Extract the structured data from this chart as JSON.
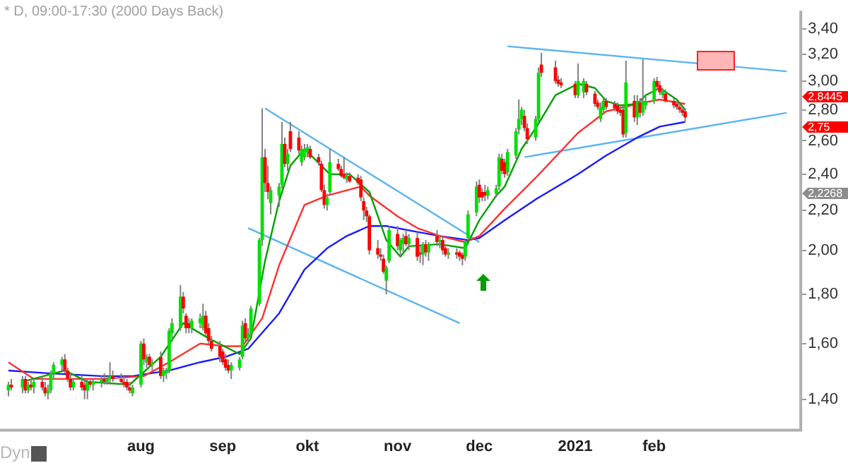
{
  "chart_data": {
    "type": "candlestick",
    "title": "* D, 09:00-17:30 (2000 Days Back)",
    "log": "y",
    "x": [
      "2020-06-17",
      "2020-06-18",
      "2020-06-22",
      "2020-06-23",
      "2020-06-24",
      "2020-06-25",
      "2020-06-26",
      "2020-06-29",
      "2020-06-30",
      "2020-07-01",
      "2020-07-02",
      "2020-07-03",
      "2020-07-06",
      "2020-07-07",
      "2020-07-08",
      "2020-07-09",
      "2020-07-10",
      "2020-07-13",
      "2020-07-14",
      "2020-07-15",
      "2020-07-16",
      "2020-07-17",
      "2020-07-20",
      "2020-07-21",
      "2020-07-22",
      "2020-07-23",
      "2020-07-24",
      "2020-07-27",
      "2020-07-28",
      "2020-07-29",
      "2020-07-30",
      "2020-07-31",
      "2020-08-03",
      "2020-08-04",
      "2020-08-05",
      "2020-08-06",
      "2020-08-07",
      "2020-08-10",
      "2020-08-11",
      "2020-08-12",
      "2020-08-13",
      "2020-08-14",
      "2020-08-17",
      "2020-08-18",
      "2020-08-19",
      "2020-08-20",
      "2020-08-21",
      "2020-08-24",
      "2020-08-25",
      "2020-08-26",
      "2020-08-27",
      "2020-08-28",
      "2020-08-31",
      "2020-09-01",
      "2020-09-02",
      "2020-09-03",
      "2020-09-04",
      "2020-09-07",
      "2020-09-08",
      "2020-09-09",
      "2020-09-10",
      "2020-09-11",
      "2020-09-14",
      "2020-09-15",
      "2020-09-16",
      "2020-09-17",
      "2020-09-18",
      "2020-09-21",
      "2020-09-22",
      "2020-09-23",
      "2020-09-24",
      "2020-09-25",
      "2020-09-28",
      "2020-09-29",
      "2020-09-30",
      "2020-10-01",
      "2020-10-02",
      "2020-10-05",
      "2020-10-06",
      "2020-10-07",
      "2020-10-08",
      "2020-10-09",
      "2020-10-12",
      "2020-10-13",
      "2020-10-14",
      "2020-10-15",
      "2020-10-16",
      "2020-10-19",
      "2020-10-20",
      "2020-10-21",
      "2020-10-22",
      "2020-10-23",
      "2020-10-26",
      "2020-10-27",
      "2020-10-28",
      "2020-10-29",
      "2020-10-30",
      "2020-11-02",
      "2020-11-03",
      "2020-11-04",
      "2020-11-05",
      "2020-11-06",
      "2020-11-09",
      "2020-11-10",
      "2020-11-11",
      "2020-11-12",
      "2020-11-13",
      "2020-11-16",
      "2020-11-17",
      "2020-11-18",
      "2020-11-19",
      "2020-11-20",
      "2020-11-23",
      "2020-11-24",
      "2020-11-25",
      "2020-11-26",
      "2020-11-27",
      "2020-11-30",
      "2020-12-01",
      "2020-12-02",
      "2020-12-03",
      "2020-12-04",
      "2020-12-07",
      "2020-12-08",
      "2020-12-09",
      "2020-12-10",
      "2020-12-11",
      "2020-12-14",
      "2020-12-15",
      "2020-12-16",
      "2020-12-17",
      "2020-12-18",
      "2020-12-21",
      "2020-12-22",
      "2020-12-23",
      "2020-12-28",
      "2020-12-29",
      "2020-12-30",
      "2021-01-04",
      "2021-01-05",
      "2021-01-07",
      "2021-01-08",
      "2021-01-11",
      "2021-01-12",
      "2021-01-13",
      "2021-01-14",
      "2021-01-15",
      "2021-01-18",
      "2021-01-19",
      "2021-01-20",
      "2021-01-21",
      "2021-01-22",
      "2021-01-25",
      "2021-01-26",
      "2021-01-27",
      "2021-01-28",
      "2021-01-29",
      "2021-02-01",
      "2021-02-02",
      "2021-02-03",
      "2021-02-04",
      "2021-02-05",
      "2021-02-08",
      "2021-02-09",
      "2021-02-10",
      "2021-02-11",
      "2021-02-12"
    ],
    "ohlc": [
      [
        1.43,
        1.46,
        1.41,
        1.45
      ],
      [
        1.45,
        1.47,
        1.43,
        1.44
      ],
      [
        1.44,
        1.48,
        1.42,
        1.47
      ],
      [
        1.47,
        1.48,
        1.42,
        1.43
      ],
      [
        1.43,
        1.46,
        1.42,
        1.45
      ],
      [
        1.45,
        1.47,
        1.43,
        1.44
      ],
      [
        1.44,
        1.47,
        1.42,
        1.46
      ],
      [
        1.46,
        1.48,
        1.43,
        1.44
      ],
      [
        1.44,
        1.46,
        1.41,
        1.42
      ],
      [
        1.42,
        1.45,
        1.4,
        1.43
      ],
      [
        1.43,
        1.5,
        1.42,
        1.49
      ],
      [
        1.49,
        1.53,
        1.47,
        1.52
      ],
      [
        1.52,
        1.55,
        1.5,
        1.54
      ],
      [
        1.54,
        1.56,
        1.49,
        1.5
      ],
      [
        1.5,
        1.51,
        1.46,
        1.47
      ],
      [
        1.47,
        1.49,
        1.43,
        1.44
      ],
      [
        1.44,
        1.47,
        1.43,
        1.46
      ],
      [
        1.46,
        1.48,
        1.43,
        1.44
      ],
      [
        1.45,
        1.47,
        1.4,
        1.43
      ],
      [
        1.43,
        1.47,
        1.4,
        1.46
      ],
      [
        1.46,
        1.47,
        1.44,
        1.45
      ],
      [
        1.45,
        1.47,
        1.43,
        1.46
      ],
      [
        1.46,
        1.48,
        1.44,
        1.47
      ],
      [
        1.47,
        1.49,
        1.45,
        1.46
      ],
      [
        1.46,
        1.48,
        1.45,
        1.47
      ],
      [
        1.47,
        1.53,
        1.45,
        1.48
      ],
      [
        1.48,
        1.5,
        1.46,
        1.47
      ],
      [
        1.47,
        1.49,
        1.45,
        1.46
      ],
      [
        1.46,
        1.48,
        1.44,
        1.45
      ],
      [
        1.46,
        1.47,
        1.43,
        1.44
      ],
      [
        1.44,
        1.46,
        1.42,
        1.43
      ],
      [
        1.42,
        1.45,
        1.41,
        1.44
      ],
      [
        1.45,
        1.61,
        1.44,
        1.6
      ],
      [
        1.6,
        1.62,
        1.52,
        1.54
      ],
      [
        1.53,
        1.56,
        1.51,
        1.55
      ],
      [
        1.55,
        1.56,
        1.51,
        1.52
      ],
      [
        1.52,
        1.54,
        1.5,
        1.53
      ],
      [
        1.55,
        1.57,
        1.47,
        1.48
      ],
      [
        1.48,
        1.51,
        1.46,
        1.5
      ],
      [
        1.49,
        1.51,
        1.47,
        1.5
      ],
      [
        1.5,
        1.66,
        1.49,
        1.65
      ],
      [
        1.64,
        1.7,
        1.62,
        1.68
      ],
      [
        1.66,
        1.84,
        1.65,
        1.79
      ],
      [
        1.79,
        1.81,
        1.72,
        1.74
      ],
      [
        1.71,
        1.72,
        1.64,
        1.66
      ],
      [
        1.68,
        1.7,
        1.64,
        1.66
      ],
      [
        1.66,
        1.7,
        1.64,
        1.69
      ],
      [
        1.68,
        1.72,
        1.66,
        1.7
      ],
      [
        1.66,
        1.76,
        1.65,
        1.71
      ],
      [
        1.71,
        1.73,
        1.63,
        1.64
      ],
      [
        1.66,
        1.68,
        1.6,
        1.61
      ],
      [
        1.61,
        1.63,
        1.57,
        1.58
      ],
      [
        1.59,
        1.61,
        1.53,
        1.55
      ],
      [
        1.57,
        1.58,
        1.52,
        1.53
      ],
      [
        1.54,
        1.56,
        1.5,
        1.51
      ],
      [
        1.52,
        1.54,
        1.49,
        1.5
      ],
      [
        1.5,
        1.53,
        1.47,
        1.52
      ],
      [
        1.51,
        1.55,
        1.5,
        1.54
      ],
      [
        1.55,
        1.69,
        1.54,
        1.67
      ],
      [
        1.68,
        1.7,
        1.61,
        1.62
      ],
      [
        1.62,
        1.66,
        1.6,
        1.64
      ],
      [
        1.64,
        1.75,
        1.63,
        1.74
      ],
      [
        1.76,
        2.06,
        1.75,
        2.05
      ],
      [
        2.05,
        2.81,
        2.02,
        2.5
      ],
      [
        2.5,
        2.55,
        2.3,
        2.35
      ],
      [
        2.35,
        2.45,
        2.26,
        2.3
      ],
      [
        2.24,
        2.33,
        2.18,
        2.31
      ],
      [
        2.28,
        2.35,
        2.22,
        2.33
      ],
      [
        2.34,
        2.72,
        2.32,
        2.58
      ],
      [
        2.58,
        2.62,
        2.44,
        2.46
      ],
      [
        2.46,
        2.55,
        2.42,
        2.52
      ],
      [
        2.66,
        2.72,
        2.53,
        2.55
      ],
      [
        2.62,
        2.66,
        2.52,
        2.54
      ],
      [
        2.47,
        2.57,
        2.45,
        2.55
      ],
      [
        2.5,
        2.58,
        2.48,
        2.55
      ],
      [
        2.53,
        2.58,
        2.5,
        2.56
      ],
      [
        2.55,
        2.57,
        2.49,
        2.5
      ],
      [
        2.5,
        2.52,
        2.45,
        2.47
      ],
      [
        2.46,
        2.48,
        2.3,
        2.31
      ],
      [
        2.31,
        2.34,
        2.21,
        2.23
      ],
      [
        2.23,
        2.29,
        2.2,
        2.27
      ],
      [
        2.3,
        2.55,
        2.28,
        2.47
      ],
      [
        2.46,
        2.49,
        2.42,
        2.43
      ],
      [
        2.43,
        2.45,
        2.38,
        2.39
      ],
      [
        2.4,
        2.5,
        2.37,
        2.38
      ],
      [
        2.37,
        2.41,
        2.35,
        2.39
      ],
      [
        2.39,
        2.41,
        2.35,
        2.36
      ],
      [
        2.38,
        2.4,
        2.34,
        2.35
      ],
      [
        2.37,
        2.39,
        2.25,
        2.27
      ],
      [
        2.25,
        2.27,
        2.15,
        2.2
      ],
      [
        2.2,
        2.22,
        2.14,
        2.17
      ],
      [
        2.17,
        2.18,
        1.98,
        2
      ],
      [
        2.01,
        2.05,
        1.96,
        1.98
      ],
      [
        1.98,
        2.01,
        1.95,
        1.97
      ],
      [
        1.96,
        1.98,
        1.89,
        1.9
      ],
      [
        1.86,
        1.93,
        1.8,
        1.92
      ],
      [
        1.95,
        2.12,
        1.94,
        2.1
      ],
      [
        2.08,
        2.12,
        2,
        2.02
      ],
      [
        2,
        2.06,
        1.97,
        2.05
      ],
      [
        2.03,
        2.08,
        1.99,
        2.06
      ],
      [
        2.07,
        2.1,
        2.02,
        2.03
      ],
      [
        2.03,
        2.08,
        2,
        2.06
      ],
      [
        2.06,
        2.09,
        1.95,
        1.97
      ],
      [
        1.99,
        2.02,
        1.94,
        1.98
      ],
      [
        1.98,
        2.04,
        1.93,
        2.03
      ],
      [
        2.03,
        2.05,
        1.97,
        1.99
      ],
      [
        1.99,
        2.04,
        1.95,
        2.03
      ],
      [
        2.07,
        2.1,
        2.02,
        2.04
      ],
      [
        2.04,
        2.07,
        2.01,
        2.05
      ],
      [
        2.05,
        2.07,
        1.98,
        2
      ],
      [
        2.01,
        2.03,
        1.97,
        1.98
      ],
      [
        1.98,
        2.01,
        1.96,
        1.99
      ],
      [
        1.99,
        2.01,
        1.96,
        1.98
      ],
      [
        1.99,
        2,
        1.95,
        1.97
      ],
      [
        1.98,
        1.99,
        1.93,
        1.96
      ],
      [
        1.97,
        2.05,
        1.95,
        2.04
      ],
      [
        2.06,
        2.2,
        2.05,
        2.18
      ],
      [
        2.19,
        2.36,
        2.17,
        2.33
      ],
      [
        2.34,
        2.37,
        2.24,
        2.27
      ],
      [
        2.3,
        2.32,
        2.25,
        2.27
      ],
      [
        2.3,
        2.34,
        2.25,
        2.28
      ],
      [
        2.28,
        2.33,
        2.26,
        2.31
      ],
      [
        2.29,
        2.34,
        2.27,
        2.32
      ],
      [
        2.33,
        2.52,
        2.31,
        2.5
      ],
      [
        2.49,
        2.52,
        2.4,
        2.42
      ],
      [
        2.47,
        2.49,
        2.38,
        2.4
      ],
      [
        2.41,
        2.55,
        2.39,
        2.53
      ],
      [
        2.51,
        2.68,
        2.49,
        2.66
      ],
      [
        2.67,
        2.87,
        2.64,
        2.74
      ],
      [
        2.74,
        2.82,
        2.7,
        2.8
      ],
      [
        2.76,
        2.8,
        2.66,
        2.68
      ],
      [
        2.68,
        2.71,
        2.58,
        2.61
      ],
      [
        2.62,
        2.76,
        2.6,
        2.74
      ],
      [
        2.74,
        3.1,
        2.72,
        3.06
      ],
      [
        3.12,
        3.21,
        3.03,
        3.06
      ],
      [
        3.1,
        3.15,
        2.98,
        3
      ],
      [
        3.01,
        3.04,
        2.96,
        2.98
      ],
      [
        2.99,
        3.02,
        2.95,
        2.97
      ],
      [
        2.98,
        3,
        2.88,
        2.9
      ],
      [
        2.9,
        3.13,
        2.88,
        3
      ],
      [
        2.92,
        3.02,
        2.88,
        3
      ],
      [
        2.98,
        3,
        2.9,
        2.92
      ],
      [
        2.91,
        2.93,
        2.82,
        2.84
      ],
      [
        2.85,
        2.87,
        2.8,
        2.82
      ],
      [
        2.74,
        2.85,
        2.72,
        2.82
      ],
      [
        2.8,
        2.88,
        2.78,
        2.86
      ],
      [
        2.86,
        2.88,
        2.8,
        2.82
      ],
      [
        2.84,
        2.86,
        2.79,
        2.81
      ],
      [
        2.83,
        2.85,
        2.77,
        2.79
      ],
      [
        2.8,
        2.83,
        2.76,
        2.78
      ],
      [
        2.8,
        2.83,
        2.62,
        2.64
      ],
      [
        2.65,
        3.15,
        2.62,
        2.99
      ],
      [
        2.86,
        2.9,
        2.72,
        2.75
      ],
      [
        2.75,
        2.9,
        2.7,
        2.86
      ],
      [
        2.85,
        2.88,
        2.75,
        2.78
      ],
      [
        2.78,
        3.16,
        2.76,
        2.86
      ],
      [
        2.83,
        2.9,
        2.8,
        2.86
      ],
      [
        2.86,
        3.02,
        2.84,
        3
      ],
      [
        3,
        3.03,
        2.94,
        2.96
      ],
      [
        2.97,
        3,
        2.9,
        2.92
      ],
      [
        2.9,
        2.95,
        2.88,
        2.93
      ],
      [
        2.91,
        2.94,
        2.85,
        2.86
      ],
      [
        2.86,
        2.88,
        2.81,
        2.83
      ],
      [
        2.84,
        2.86,
        2.8,
        2.82
      ],
      [
        2.82,
        2.84,
        2.78,
        2.8
      ],
      [
        2.8,
        2.82,
        2.76,
        2.78
      ],
      [
        2.79,
        2.81,
        2.72,
        2.75
      ]
    ],
    "series": [
      {
        "type": "line",
        "color": "#00a000",
        "x": [
          "2020-06-22",
          "2020-07-07",
          "2020-07-15",
          "2020-07-30",
          "2020-08-10",
          "2020-08-18",
          "2020-08-27",
          "2020-09-07",
          "2020-09-11",
          "2020-09-16",
          "2020-09-21",
          "2020-09-25",
          "2020-09-30",
          "2020-10-09",
          "2020-10-16",
          "2020-10-23",
          "2020-10-29",
          "2020-11-03",
          "2020-11-06",
          "2020-11-17",
          "2020-11-26",
          "2020-12-01",
          "2020-12-07",
          "2020-12-10",
          "2020-12-16",
          "2020-12-21",
          "2020-12-28",
          "2021-01-05",
          "2021-01-11",
          "2021-01-15",
          "2021-01-20",
          "2021-01-26",
          "2021-01-29",
          "2021-02-03",
          "2021-02-09",
          "2021-02-12"
        ],
        "values": [
          1.46,
          1.5,
          1.46,
          1.45,
          1.55,
          1.68,
          1.62,
          1.56,
          1.62,
          1.95,
          2.25,
          2.45,
          2.55,
          2.4,
          2.4,
          2.3,
          2.05,
          1.97,
          2.02,
          2.03,
          2.01,
          2.15,
          2.28,
          2.33,
          2.55,
          2.68,
          2.9,
          2.98,
          2.95,
          2.86,
          2.83,
          2.84,
          2.9,
          2.95,
          2.87,
          2.8
        ]
      },
      {
        "type": "line",
        "color": "#ff3030",
        "x": [
          "2020-06-17",
          "2020-06-26",
          "2020-07-20",
          "2020-08-04",
          "2020-08-13",
          "2020-08-24",
          "2020-09-02",
          "2020-09-08",
          "2020-09-15",
          "2020-09-21",
          "2020-09-30",
          "2020-10-08",
          "2020-10-20",
          "2020-10-23",
          "2020-11-02",
          "2020-11-09",
          "2020-11-17",
          "2020-11-26",
          "2020-12-01",
          "2020-12-10",
          "2020-12-21",
          "2021-01-05",
          "2021-01-15",
          "2021-01-26",
          "2021-02-03",
          "2021-02-12"
        ],
        "values": [
          1.53,
          1.47,
          1.47,
          1.48,
          1.53,
          1.6,
          1.59,
          1.59,
          1.7,
          1.93,
          2.23,
          2.28,
          2.33,
          2.28,
          2.17,
          2.11,
          2.07,
          2.04,
          2.07,
          2.21,
          2.38,
          2.65,
          2.79,
          2.84,
          2.87,
          2.84
        ]
      },
      {
        "type": "line",
        "color": "#1a1aff",
        "x": [
          "2020-06-17",
          "2020-07-01",
          "2020-07-20",
          "2020-07-31",
          "2020-08-13",
          "2020-08-24",
          "2020-09-02",
          "2020-09-10",
          "2020-09-21",
          "2020-09-30",
          "2020-10-08",
          "2020-10-15",
          "2020-10-23",
          "2020-10-29",
          "2020-11-09",
          "2020-11-17",
          "2020-11-27",
          "2020-12-01",
          "2020-12-10",
          "2020-12-21",
          "2021-01-05",
          "2021-01-15",
          "2021-01-26",
          "2021-02-03",
          "2021-02-12"
        ],
        "values": [
          1.5,
          1.49,
          1.48,
          1.48,
          1.5,
          1.53,
          1.55,
          1.58,
          1.72,
          1.91,
          2.01,
          2.07,
          2.12,
          2.12,
          2.09,
          2.07,
          2.05,
          2.06,
          2.15,
          2.26,
          2.4,
          2.51,
          2.62,
          2.69,
          2.72
        ]
      },
      {
        "type": "line",
        "color": "#5ab4f0",
        "x": [
          "2020-09-16",
          "2020-12-01"
        ],
        "values": [
          2.81,
          2.04
        ]
      },
      {
        "type": "line",
        "color": "#5ab4f0",
        "x": [
          "2020-09-10",
          "2020-11-24"
        ],
        "values": [
          2.11,
          1.68
        ]
      },
      {
        "type": "line",
        "color": "#5ab4f0",
        "x": [
          "2020-12-11",
          "2021-03-20"
        ],
        "values": [
          3.26,
          3.07
        ]
      },
      {
        "type": "line",
        "color": "#5ab4f0",
        "x": [
          "2020-12-17",
          "2021-03-20"
        ],
        "values": [
          2.5,
          2.78
        ]
      }
    ],
    "xlim": [
      "2020-06-14",
      "2021-03-25"
    ],
    "xticks": [
      {
        "value": "2020-08-03",
        "label": "aug"
      },
      {
        "value": "2020-09-01",
        "label": "sep"
      },
      {
        "value": "2020-10-01",
        "label": "okt"
      },
      {
        "value": "2020-11-02",
        "label": "nov"
      },
      {
        "value": "2020-12-01",
        "label": "dec"
      },
      {
        "value": "2021-01-04",
        "label": "2021"
      },
      {
        "value": "2021-02-01",
        "label": "feb"
      }
    ],
    "ylim": [
      1.3,
      3.55
    ],
    "yticks": [
      {
        "value": 1.4,
        "label": "1,40"
      },
      {
        "value": 1.6,
        "label": "1,60"
      },
      {
        "value": 1.8,
        "label": "1,80"
      },
      {
        "value": 2,
        "label": "2,00"
      },
      {
        "value": 2.2,
        "label": "2,20"
      },
      {
        "value": 2.4,
        "label": "2,40"
      },
      {
        "value": 2.6,
        "label": "2,60"
      },
      {
        "value": 2.8,
        "label": "2,80"
      },
      {
        "value": 3,
        "label": "3,00"
      },
      {
        "value": 3.2,
        "label": "3,20"
      },
      {
        "value": 3.4,
        "label": "3,40"
      }
    ],
    "annotations": [
      "2,8445",
      "2,75",
      "2,2268",
      "Dyn"
    ]
  }
}
